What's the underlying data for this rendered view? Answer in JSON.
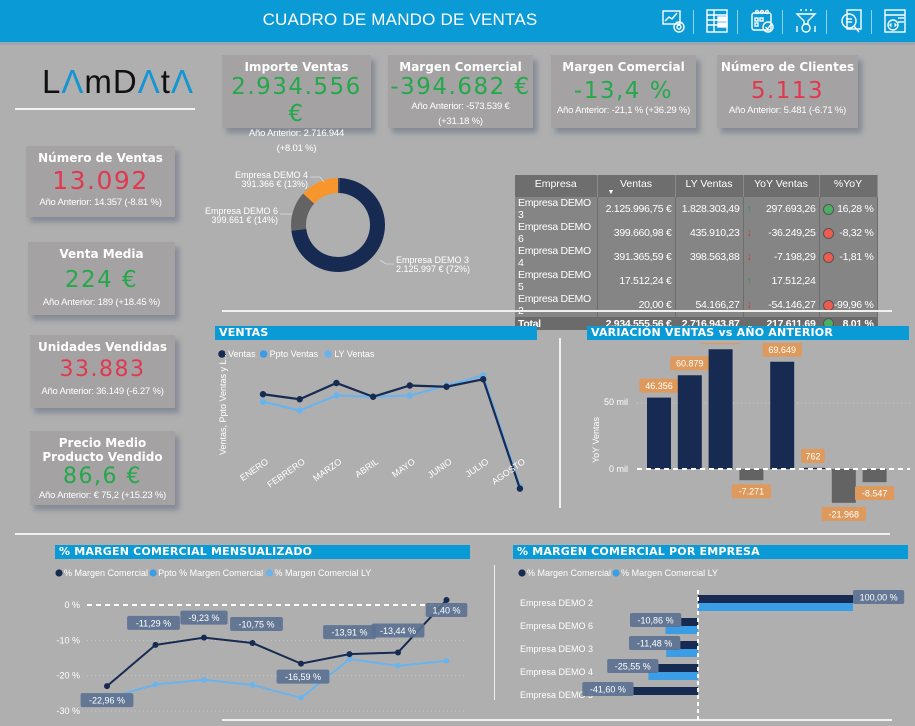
{
  "header": {
    "title": "CUADRO DE MANDO DE VENTAS",
    "icons": [
      "dashboard-chart-icon",
      "table-report-icon",
      "calendar-check-icon",
      "funnel-money-icon",
      "document-search-icon",
      "settings-code-icon"
    ]
  },
  "logo": {
    "part1": "L",
    "a1": "Λ",
    "part2": "mD",
    "a2": "Λ",
    "part3": "t",
    "a3": "Λ"
  },
  "kpis_top": [
    {
      "title": "Importe Ventas",
      "value": "2.934.556 €",
      "sub1": "Año Anterior: 2.716.944",
      "sub2": "(+8.01 %)",
      "tone": "green"
    },
    {
      "title": "Margen Comercial",
      "value": "-394.682 €",
      "sub1": "Año Anterior: -573.539 €",
      "sub2": "(+31.18 %)",
      "tone": "green"
    },
    {
      "title": "Margen Comercial",
      "value": "-13,4 %",
      "sub1": "Año Anterior: -21,1 % (+36.29 %)",
      "sub2": "",
      "tone": "green"
    },
    {
      "title": "Número de Clientes",
      "value": "5.113",
      "sub1": "Año Anterior: 5.481 (-6.71 %)",
      "sub2": "",
      "tone": "red"
    }
  ],
  "kpis_left": [
    {
      "title": "Número de Ventas",
      "value": "13.092",
      "sub1": "Año Anterior: 14.357 (-8.81 %)",
      "tone": "red"
    },
    {
      "title": "Venta Media",
      "value": "224 €",
      "sub1": "Año Anterior: 189 (+18.45 %)",
      "tone": "green"
    },
    {
      "title": "Unidades Vendidas",
      "value": "33.883",
      "sub1": "Año Anterior: 36.149 (-6.27 %)",
      "tone": "red"
    },
    {
      "title": "Precio Medio Producto Vendido",
      "value": "86,6 €",
      "sub1": "Año Anterior: € 75,2 (+15.23 %)",
      "tone": "green"
    }
  ],
  "colors": {
    "navy": "#172b52",
    "blue": "#3a9de6",
    "lightblue": "#6ab4ee",
    "orange": "#f7962d",
    "gray": "#636363",
    "header": "#0a9ad6",
    "labelOrange": "#dd9a5c",
    "labelSlate": "#5b7191",
    "green": "#23a84a",
    "red": "#e0394f"
  },
  "donut": {
    "slices": [
      {
        "name": "Empresa DEMO 3",
        "value": 2125997,
        "label1": "Empresa DEMO 3",
        "label2": "2.125.997 € (72%)",
        "color": "#172b52"
      },
      {
        "name": "Empresa DEMO 6",
        "value": 399661,
        "label1": "Empresa DEMO 6",
        "label2": "399.661 € (14%)",
        "color": "#636363"
      },
      {
        "name": "Empresa DEMO 4",
        "value": 391366,
        "label1": "Empresa DEMO 4",
        "label2": "391.366 € (13%)",
        "color": "#f7962d"
      },
      {
        "name": "Empresa DEMO 5",
        "value": 17512,
        "label1": "",
        "label2": "",
        "color": "#3a4a6a"
      }
    ]
  },
  "table": {
    "headers": [
      "Empresa",
      "Ventas",
      "LY Ventas",
      "YoY Ventas",
      "%YoY"
    ],
    "rows": [
      {
        "empresa": "Empresa DEMO 3",
        "ventas": "2.125.996,75 €",
        "ly": "1.828.303,49",
        "trend": "up",
        "yoy": "297.693,26",
        "status": "green",
        "pct": "16,28 %"
      },
      {
        "empresa": "Empresa DEMO 6",
        "ventas": "399.660,98 €",
        "ly": "435.910,23",
        "trend": "down",
        "yoy": "-36.249,25",
        "status": "red",
        "pct": "-8,32 %"
      },
      {
        "empresa": "Empresa DEMO 4",
        "ventas": "391.365,59 €",
        "ly": "398.563,88",
        "trend": "down",
        "yoy": "-7.198,29",
        "status": "red",
        "pct": "-1,81 %"
      },
      {
        "empresa": "Empresa DEMO 5",
        "ventas": "17.512,24 €",
        "ly": "",
        "trend": "up",
        "yoy": "17.512,24",
        "status": "",
        "pct": ""
      },
      {
        "empresa": "Empresa DEMO 2",
        "ventas": "20,00 €",
        "ly": "54.166,27",
        "trend": "down",
        "yoy": "-54.146,27",
        "status": "red",
        "pct": "-99,96 %"
      }
    ],
    "total": {
      "empresa": "Total",
      "ventas": "2.934.555,56 €",
      "ly": "2.716.943,87",
      "trend": "up",
      "yoy": "217.611,69",
      "status": "green",
      "pct": "8,01 %"
    }
  },
  "chart_data": [
    {
      "type": "line",
      "title": "VENTAS",
      "ylabel": "Ventas, Ppto Ventas y L...",
      "legend": [
        "Ventas",
        "Ppto Ventas",
        "LY Ventas"
      ],
      "legend_position": "top-left",
      "categories": [
        "ENERO",
        "FEBRERO",
        "MARZO",
        "ABRIL",
        "MAYO",
        "JUNIO",
        "JULIO",
        "AGOSTO"
      ],
      "series": [
        {
          "name": "Ventas",
          "values": [
            395000,
            375000,
            440000,
            385000,
            430000,
            425000,
            455000,
            17500
          ]
        },
        {
          "name": "LY Ventas",
          "values": [
            365000,
            330000,
            390000,
            385000,
            390000,
            430000,
            470000,
            25000
          ]
        }
      ],
      "ylim": [
        0,
        500000
      ]
    },
    {
      "type": "bar",
      "title": "VARIACIÓN VENTAS vs AÑO ANTERIOR",
      "ylabel": "YoY Ventas",
      "yticks": [
        "0 mil",
        "50 mil"
      ],
      "values": [
        46356,
        60879,
        77752,
        -7271,
        69649,
        762,
        -21968,
        -8547
      ],
      "data_labels": [
        "46.356",
        "60.879",
        "77.752",
        "-7.271",
        "69.649",
        "762",
        "-21.968",
        "-8.547"
      ],
      "ylim": [
        -30000,
        90000
      ]
    },
    {
      "type": "line",
      "title": "% MARGEN COMERCIAL MENSUALIZADO",
      "legend": [
        "% Margen Comercial",
        "Ppto % Margen Comercial",
        "% Margen Comercial LY"
      ],
      "legend_position": "top-left",
      "yticks": [
        "0 %",
        "-10 %",
        "-20 %",
        "-30 %"
      ],
      "series": [
        {
          "name": "% Margen Comercial",
          "values": [
            -22.96,
            -11.29,
            -9.23,
            -10.75,
            -16.59,
            -13.91,
            -13.44,
            1.4
          ],
          "labels": [
            "-22,96 %",
            "-11,29 %",
            "-9,23 %",
            "-10,75 %",
            "-16,59 %",
            "-13,91 %",
            "-13,44 %",
            "1,40 %"
          ]
        },
        {
          "name": "% Margen Comercial LY",
          "values": [
            -26.5,
            -22.5,
            -21.2,
            -22.6,
            -26.3,
            -15.3,
            -17.2,
            -15.8
          ]
        }
      ],
      "ylim": [
        -30,
        3
      ]
    },
    {
      "type": "bar",
      "title": "% MARGEN COMERCIAL POR EMPRESA",
      "orientation": "horizontal",
      "legend": [
        "% Margen Comercial",
        "% Margen Comercial LY"
      ],
      "categories": [
        "Empresa DEMO 2",
        "Empresa DEMO 6",
        "Empresa DEMO 3",
        "Empresa DEMO 4",
        "Empresa DEMO 5"
      ],
      "series": [
        {
          "name": "% Margen Comercial",
          "values": [
            100.0,
            -10.86,
            -11.48,
            -25.55,
            -41.6
          ],
          "labels": [
            "100,00 %",
            "-10,86 %",
            "-11,48 %",
            "-25,55 %",
            "-41,60 %"
          ]
        },
        {
          "name": "% Margen Comercial LY",
          "values": [
            100.0,
            -21.0,
            -20.5,
            -32.0,
            0
          ]
        }
      ],
      "xlim": [
        -45,
        100
      ]
    }
  ]
}
